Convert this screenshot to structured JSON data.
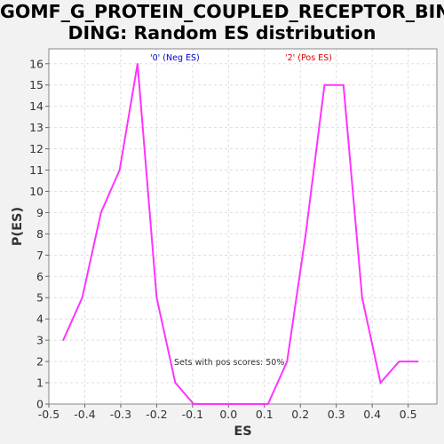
{
  "chart_data": {
    "type": "line",
    "title_lines": [
      "GOMF_G_PROTEIN_COUPLED_RECEPTOR_BIN",
      "DING: Random ES distribution"
    ],
    "xlabel": "ES",
    "ylabel": "P(ES)",
    "xlim": [
      -0.5,
      0.58
    ],
    "ylim": [
      0,
      16.7
    ],
    "xticks": [
      -0.5,
      -0.4,
      -0.3,
      -0.2,
      -0.1,
      0.0,
      0.1,
      0.2,
      0.3,
      0.4,
      0.5
    ],
    "xtick_labels": [
      "-0.5",
      "-0.4",
      "-0.3",
      "-0.2",
      "-0.1",
      "0.0",
      "0.1",
      "0.2",
      "0.3",
      "0.4",
      "0.5"
    ],
    "yticks": [
      0,
      1,
      2,
      3,
      4,
      5,
      6,
      7,
      8,
      9,
      10,
      11,
      12,
      13,
      14,
      15,
      16
    ],
    "grid": true,
    "series": [
      {
        "color": "#ff33ff",
        "x": [
          -0.46,
          -0.407,
          -0.355,
          -0.303,
          -0.253,
          -0.2,
          -0.148,
          -0.097,
          -0.045,
          0.008,
          0.058,
          0.11,
          0.163,
          0.215,
          0.267,
          0.32,
          0.372,
          0.423,
          0.475,
          0.527
        ],
        "y": [
          3,
          5,
          9,
          11,
          16,
          5,
          1,
          0,
          0,
          0,
          0,
          0,
          2,
          8,
          15,
          15,
          5,
          1,
          2,
          2
        ]
      }
    ],
    "annotations": {
      "neg_label": "'0' (Neg ES)",
      "neg_color": "#0000dd",
      "pos_label": "'2' (Pos ES)",
      "pos_color": "#dd0000",
      "pos_scores": "Sets with pos scores: 50%",
      "pos_scores_color": "#333333"
    },
    "plot_background": "#ffffff",
    "grid_color": "#dddddd"
  }
}
